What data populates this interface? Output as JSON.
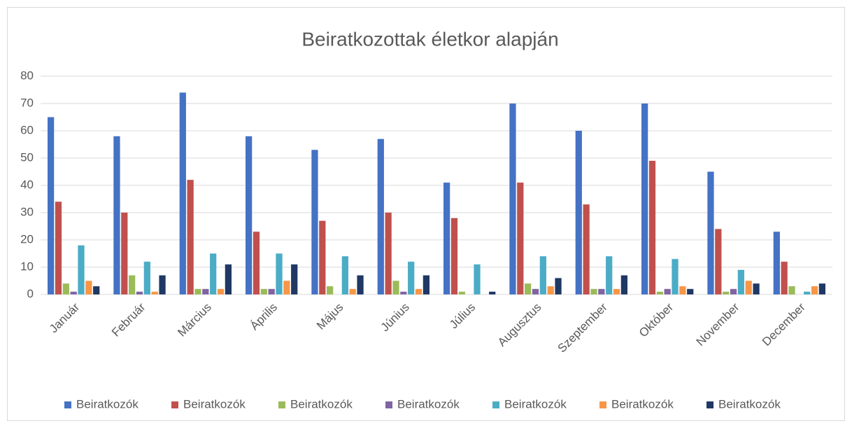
{
  "chart_data": {
    "type": "bar",
    "title": "Beiratkozottak életkor alapján",
    "categories": [
      "Január",
      "Február",
      "Március",
      "Április",
      "Május",
      "Június",
      "Július",
      "Augusztus",
      "Szeptember",
      "Október",
      "November",
      "December"
    ],
    "series": [
      {
        "name": "Beiratkozók",
        "color": "#4472c4",
        "values": [
          65,
          58,
          74,
          58,
          53,
          57,
          41,
          70,
          60,
          70,
          45,
          23
        ]
      },
      {
        "name": "Beiratkozók",
        "color": "#c0504d",
        "values": [
          34,
          30,
          42,
          23,
          27,
          30,
          28,
          41,
          33,
          49,
          24,
          12
        ]
      },
      {
        "name": "Beiratkozók",
        "color": "#9bbb59",
        "values": [
          4,
          7,
          2,
          2,
          3,
          5,
          1,
          4,
          2,
          1,
          1,
          3
        ]
      },
      {
        "name": "Beiratkozók",
        "color": "#8064a2",
        "values": [
          1,
          1,
          2,
          2,
          0,
          1,
          0,
          2,
          2,
          2,
          2,
          0
        ]
      },
      {
        "name": "Beiratkozók",
        "color": "#4bacc6",
        "values": [
          18,
          12,
          15,
          15,
          14,
          12,
          11,
          14,
          14,
          13,
          9,
          1
        ]
      },
      {
        "name": "Beiratkozók",
        "color": "#f79646",
        "values": [
          5,
          1,
          2,
          5,
          2,
          2,
          0,
          3,
          2,
          3,
          5,
          3
        ]
      },
      {
        "name": "Beiratkozók",
        "color": "#1f3864",
        "values": [
          3,
          7,
          11,
          11,
          7,
          7,
          1,
          6,
          7,
          2,
          4,
          4
        ]
      }
    ],
    "ylim": [
      0,
      80
    ],
    "yticks": [
      0,
      10,
      20,
      30,
      40,
      50,
      60,
      70,
      80
    ],
    "grid": true,
    "legend": "bottom"
  }
}
